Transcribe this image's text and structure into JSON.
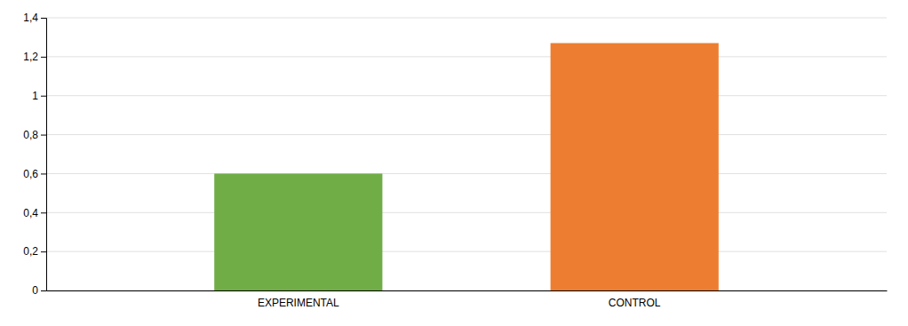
{
  "chart_data": {
    "type": "bar",
    "categories": [
      "EXPERIMENTAL",
      "CONTROL"
    ],
    "values": [
      0.6,
      1.27
    ],
    "colors": [
      "#70AD47",
      "#ED7D31"
    ],
    "ylim": [
      0,
      1.4
    ],
    "yticks": [
      0,
      {
        "value": 0.2,
        "label": "0,2"
      },
      {
        "value": 0.4,
        "label": "0,4"
      },
      {
        "value": 0.6,
        "label": "0,6"
      },
      {
        "value": 0.8,
        "label": "0,8"
      },
      1,
      {
        "value": 1.2,
        "label": "1,2"
      },
      {
        "value": 1.4,
        "label": "1,4"
      }
    ],
    "grid": true
  }
}
